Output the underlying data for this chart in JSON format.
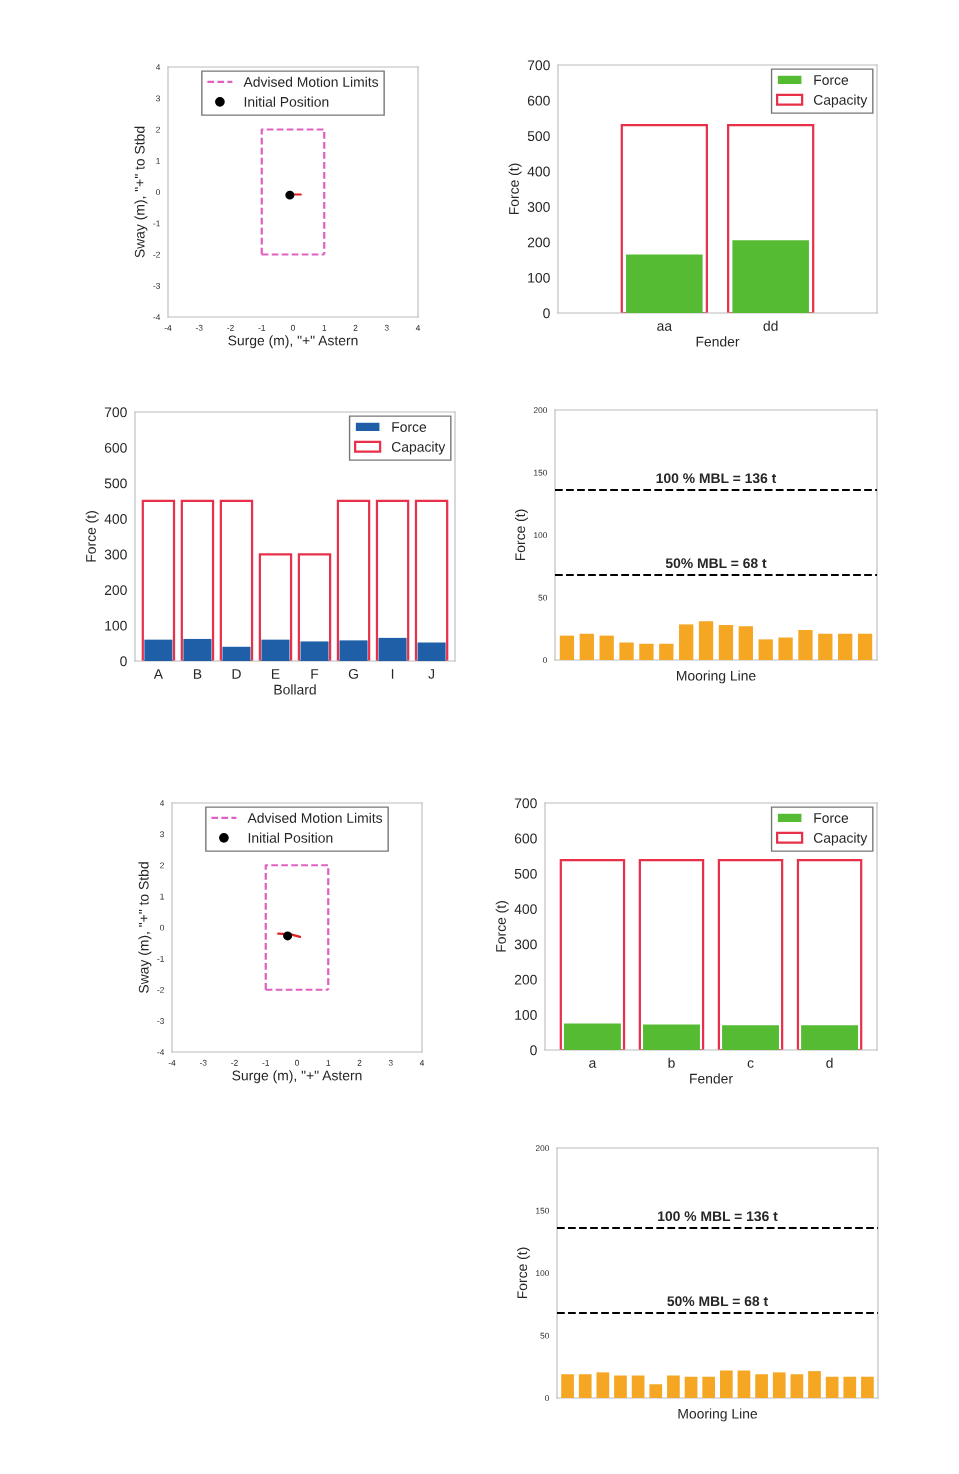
{
  "chart_data": [
    {
      "type": "line",
      "xlabel": "Surge (m), \"+\" Astern",
      "ylabel": "Sway (m), \"+\" to Stbd",
      "xlim": [
        -4,
        4
      ],
      "ylim": [
        -4,
        4
      ],
      "xticks": [
        -4,
        -3,
        -2,
        -1,
        0,
        1,
        2,
        3,
        4
      ],
      "yticks": [
        -4,
        -3,
        -2,
        -1,
        0,
        1,
        2,
        3,
        4
      ],
      "legend": "top",
      "grid": false,
      "series": [
        {
          "type": "line",
          "name": "Advised Motion Limits",
          "color": "#e060c0",
          "line_style": "dashed",
          "x": [
            -1,
            -1,
            1,
            1
          ],
          "values": [
            -2,
            2,
            2,
            -2
          ]
        },
        {
          "type": "line",
          "color": "#e060c0",
          "line_style": "dashed",
          "x": [
            -1,
            1
          ],
          "values": [
            -2,
            -2
          ]
        },
        {
          "type": "line",
          "color": "#e02020",
          "line_style": "solid",
          "x": [
            -0.2,
            0.25
          ],
          "values": [
            -0.08,
            -0.08
          ]
        },
        {
          "type": "scatter",
          "name": "Initial Position",
          "color": "#000000",
          "marker": "circle",
          "x": [
            -0.1
          ],
          "values": [
            -0.1
          ]
        }
      ]
    },
    {
      "type": "bar",
      "xlabel": "Fender",
      "ylabel": "Force (t)",
      "categories": [
        "aa",
        "dd"
      ],
      "ylim": [
        0,
        700
      ],
      "yticks": [
        0,
        100,
        200,
        300,
        400,
        500,
        600,
        700
      ],
      "legend": "top right",
      "grid": false,
      "series": [
        {
          "name": "Force",
          "color": "#55bb33",
          "values": [
            165,
            205
          ]
        },
        {
          "name": "Capacity",
          "color": "#e8304a",
          "values": [
            530,
            530
          ]
        }
      ]
    },
    {
      "type": "bar",
      "xlabel": "Bollard",
      "ylabel": "Force (t)",
      "categories": [
        "A",
        "B",
        "D",
        "E",
        "F",
        "G",
        "I",
        "J"
      ],
      "ylim": [
        0,
        700
      ],
      "yticks": [
        0,
        100,
        200,
        300,
        400,
        500,
        600,
        700
      ],
      "legend": "top right",
      "grid": false,
      "series": [
        {
          "name": "Force",
          "color": "#1f5fa8",
          "values": [
            60,
            62,
            40,
            60,
            55,
            58,
            65,
            52
          ]
        },
        {
          "name": "Capacity",
          "color": "#e8304a",
          "values": [
            450,
            450,
            450,
            300,
            300,
            450,
            450,
            450
          ]
        }
      ]
    },
    {
      "type": "bar",
      "xlabel": "Mooring Line",
      "ylabel": "Force (t)",
      "categories": [
        null,
        null,
        null,
        null,
        null,
        null,
        null,
        null,
        null,
        null,
        null,
        null,
        null,
        null,
        null,
        null
      ],
      "ylim": [
        0,
        200
      ],
      "yticks": [
        0,
        50,
        100,
        150,
        200
      ],
      "grid": false,
      "series": [
        {
          "color": "#f5a623",
          "values": [
            19.5,
            21,
            19.5,
            14,
            13,
            13,
            28.5,
            31,
            28,
            27,
            16.5,
            18,
            24,
            21,
            21,
            21
          ]
        }
      ],
      "ref_lines": [
        {
          "axis": "y",
          "value": 136,
          "label": "100 % MBL = 136 t",
          "color": "#000000",
          "line_style": "dashed"
        },
        {
          "axis": "y",
          "value": 68,
          "label": "50% MBL = 68 t",
          "color": "#000000",
          "line_style": "dashed"
        }
      ]
    },
    {
      "type": "line",
      "xlabel": "Surge (m), \"+\" Astern",
      "ylabel": "Sway (m), \"+\" to Stbd",
      "xlim": [
        -4,
        4
      ],
      "ylim": [
        -4,
        4
      ],
      "xticks": [
        -4,
        -3,
        -2,
        -1,
        0,
        1,
        2,
        3,
        4
      ],
      "yticks": [
        -4,
        -3,
        -2,
        -1,
        0,
        1,
        2,
        3,
        4
      ],
      "legend": "top",
      "grid": false,
      "series": [
        {
          "type": "line",
          "name": "Advised Motion Limits",
          "color": "#e060c0",
          "line_style": "dashed",
          "x": [
            -1,
            -1,
            1,
            1
          ],
          "values": [
            -2,
            2,
            2,
            -2
          ]
        },
        {
          "type": "line",
          "color": "#e060c0",
          "line_style": "dashed",
          "x": [
            -1,
            1
          ],
          "values": [
            -2,
            -2
          ]
        },
        {
          "type": "line",
          "color": "#e02020",
          "line_style": "solid",
          "x": [
            -0.6,
            -0.2,
            0.1
          ],
          "values": [
            -0.2,
            -0.22,
            -0.3
          ]
        },
        {
          "type": "scatter",
          "name": "Initial Position",
          "color": "#000000",
          "marker": "circle",
          "x": [
            -0.3
          ],
          "values": [
            -0.27
          ]
        }
      ]
    },
    {
      "type": "bar",
      "xlabel": "Fender",
      "ylabel": "Force (t)",
      "categories": [
        "a",
        "b",
        "c",
        "d"
      ],
      "ylim": [
        0,
        700
      ],
      "yticks": [
        0,
        100,
        200,
        300,
        400,
        500,
        600,
        700
      ],
      "legend": "top right",
      "grid": false,
      "series": [
        {
          "name": "Force",
          "color": "#55bb33",
          "values": [
            75,
            72,
            70,
            70
          ]
        },
        {
          "name": "Capacity",
          "color": "#e8304a",
          "values": [
            538,
            538,
            538,
            538
          ]
        }
      ]
    },
    {
      "type": "bar",
      "xlabel": "Mooring Line",
      "ylabel": "Force (t)",
      "categories": [
        null,
        null,
        null,
        null,
        null,
        null,
        null,
        null,
        null,
        null,
        null,
        null,
        null,
        null,
        null,
        null,
        null,
        null
      ],
      "ylim": [
        0,
        200
      ],
      "yticks": [
        0,
        50,
        100,
        150,
        200
      ],
      "grid": false,
      "series": [
        {
          "color": "#f5a623",
          "values": [
            19,
            19,
            20.5,
            18,
            18,
            11,
            18,
            17,
            17,
            22,
            22,
            19,
            20.5,
            19,
            21.5,
            17,
            17,
            17
          ]
        }
      ],
      "ref_lines": [
        {
          "axis": "y",
          "value": 136,
          "label": "100 % MBL = 136 t",
          "color": "#000000",
          "line_style": "dashed"
        },
        {
          "axis": "y",
          "value": 68,
          "label": "50% MBL = 68 t",
          "color": "#000000",
          "line_style": "dashed"
        }
      ]
    }
  ]
}
